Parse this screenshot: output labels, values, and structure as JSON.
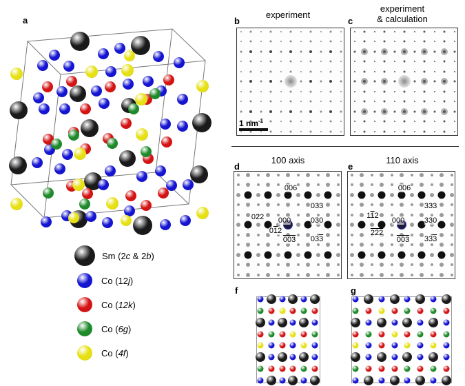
{
  "panels": {
    "a": "a",
    "b": "b",
    "c": "c",
    "d": "d",
    "e": "e",
    "f": "f",
    "g": "g"
  },
  "titles": {
    "b": "experiment",
    "c_line1": "experiment",
    "c_line2": "& calculation",
    "d": "100 axis",
    "e": "110 axis"
  },
  "scale_bar": {
    "text": "1 nm",
    "sup": "-1"
  },
  "legend": [
    {
      "pre": "Sm (2",
      "it1": "c",
      "mid": " & 2",
      "it2": "b",
      "post": ")",
      "color": "#1a1a1a"
    },
    {
      "pre": "Co (12",
      "it1": "j",
      "mid": "",
      "it2": "",
      "post": ")",
      "color": "#1414d2"
    },
    {
      "pre": "Co (",
      "it1": "12k",
      "mid": "",
      "it2": "",
      "post": ")",
      "color": "#d41414"
    },
    {
      "pre": "Co (",
      "it1": "6g",
      "mid": "",
      "it2": "",
      "post": ")",
      "color": "#1e8a2a"
    },
    {
      "pre": "Co (",
      "it1": "4f",
      "mid": "",
      "it2": "",
      "post": ")",
      "color": "#e6e014"
    }
  ],
  "miller_d": [
    {
      "t": "006",
      "x": 82,
      "y": 24
    },
    {
      "t": "033",
      "x": 120,
      "y": 50
    },
    {
      "t": "022",
      "x": 34,
      "y": 66
    },
    {
      "t": "030",
      "x": 120,
      "y": 71
    },
    {
      "t": "000",
      "x": 73,
      "y": 71
    },
    {
      "t": "012",
      "x": 60,
      "y": 86,
      "bar": "2"
    },
    {
      "t": "003",
      "x": 80,
      "y": 99,
      "bar": "all"
    },
    {
      "t": "033",
      "x": 120,
      "y": 98,
      "bar": "last"
    }
  ],
  "miller_e": [
    {
      "t": "006",
      "x": 82,
      "y": 24
    },
    {
      "t": "333",
      "x": 120,
      "y": 50
    },
    {
      "t": "112",
      "x": 36,
      "y": 64,
      "bar": "2"
    },
    {
      "t": "330",
      "x": 120,
      "y": 71
    },
    {
      "t": "000",
      "x": 73,
      "y": 71
    },
    {
      "t": "222",
      "x": 42,
      "y": 89,
      "bar": "all"
    },
    {
      "t": "003",
      "x": 80,
      "y": 99,
      "bar": "all"
    },
    {
      "t": "333",
      "x": 120,
      "y": 98,
      "bar": "last"
    }
  ],
  "colors": {
    "sm": "#1a1a1a",
    "co12j": "#1414d2",
    "co12k": "#d41414",
    "co6g": "#1e8a2a",
    "co4f": "#e6e014"
  }
}
